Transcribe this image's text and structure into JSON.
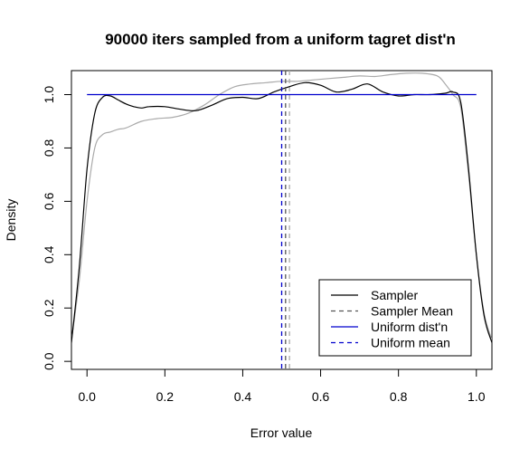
{
  "chart_data": {
    "type": "line",
    "title": "90000 iters sampled from a uniform tagret dist'n",
    "xlabel": "Error value",
    "ylabel": "Density",
    "xlim": [
      -0.04,
      1.04
    ],
    "ylim": [
      -0.03,
      1.09
    ],
    "x_ticks": [
      "0.0",
      "0.2",
      "0.4",
      "0.6",
      "0.8",
      "1.0"
    ],
    "y_ticks": [
      "0.0",
      "0.2",
      "0.4",
      "0.6",
      "0.8",
      "1.0"
    ],
    "grid": false,
    "legend_position": "bottom-right",
    "series": [
      {
        "name": "Sampler",
        "color": "#000000",
        "style": "solid",
        "x": [
          -0.04,
          -0.02,
          0.0,
          0.02,
          0.04,
          0.06,
          0.08,
          0.1,
          0.12,
          0.14,
          0.16,
          0.2,
          0.24,
          0.28,
          0.32,
          0.36,
          0.4,
          0.44,
          0.48,
          0.52,
          0.56,
          0.6,
          0.64,
          0.68,
          0.72,
          0.76,
          0.8,
          0.84,
          0.88,
          0.92,
          0.94,
          0.96,
          0.98,
          1.0,
          1.02,
          1.04
        ],
        "y": [
          0.07,
          0.35,
          0.72,
          0.93,
          0.99,
          0.995,
          0.98,
          0.965,
          0.955,
          0.95,
          0.955,
          0.955,
          0.945,
          0.94,
          0.96,
          0.985,
          0.99,
          0.985,
          1.01,
          1.03,
          1.045,
          1.035,
          1.01,
          1.02,
          1.04,
          1.01,
          0.995,
          1.0,
          1.0,
          1.005,
          1.01,
          0.97,
          0.72,
          0.4,
          0.17,
          0.07
        ]
      },
      {
        "name": "Sampler Mean",
        "color": "#555555",
        "style": "dashed",
        "vline": 0.51
      },
      {
        "name": "",
        "color": "#aaaaaa",
        "style": "solid",
        "x": [
          -0.04,
          -0.02,
          0.0,
          0.02,
          0.04,
          0.06,
          0.08,
          0.1,
          0.14,
          0.18,
          0.22,
          0.26,
          0.3,
          0.34,
          0.38,
          0.42,
          0.46,
          0.5,
          0.54,
          0.58,
          0.62,
          0.66,
          0.7,
          0.74,
          0.78,
          0.82,
          0.86,
          0.9,
          0.92,
          0.94,
          0.96,
          0.98,
          1.0,
          1.02,
          1.04
        ],
        "y": [
          0.08,
          0.3,
          0.6,
          0.8,
          0.85,
          0.86,
          0.87,
          0.875,
          0.9,
          0.91,
          0.915,
          0.93,
          0.96,
          1.0,
          1.03,
          1.04,
          1.045,
          1.05,
          1.05,
          1.055,
          1.06,
          1.065,
          1.07,
          1.068,
          1.075,
          1.08,
          1.08,
          1.07,
          1.04,
          1.0,
          0.95,
          0.7,
          0.4,
          0.18,
          0.08
        ]
      },
      {
        "name": "",
        "color": "#aaaaaa",
        "style": "dashed",
        "vline": 0.52
      },
      {
        "name": "Uniform dist'n",
        "color": "#0000cd",
        "style": "solid",
        "x": [
          0.0,
          1.0
        ],
        "y": [
          1.0,
          1.0
        ]
      },
      {
        "name": "Uniform mean",
        "color": "#0000cd",
        "style": "dashed",
        "vline": 0.5
      }
    ],
    "legend": [
      {
        "label": "Sampler",
        "color": "#000000",
        "style": "solid"
      },
      {
        "label": "Sampler Mean",
        "color": "#555555",
        "style": "dashed"
      },
      {
        "label": "Uniform dist'n",
        "color": "#0000cd",
        "style": "solid"
      },
      {
        "label": "Uniform mean",
        "color": "#0000cd",
        "style": "dashed"
      }
    ]
  }
}
